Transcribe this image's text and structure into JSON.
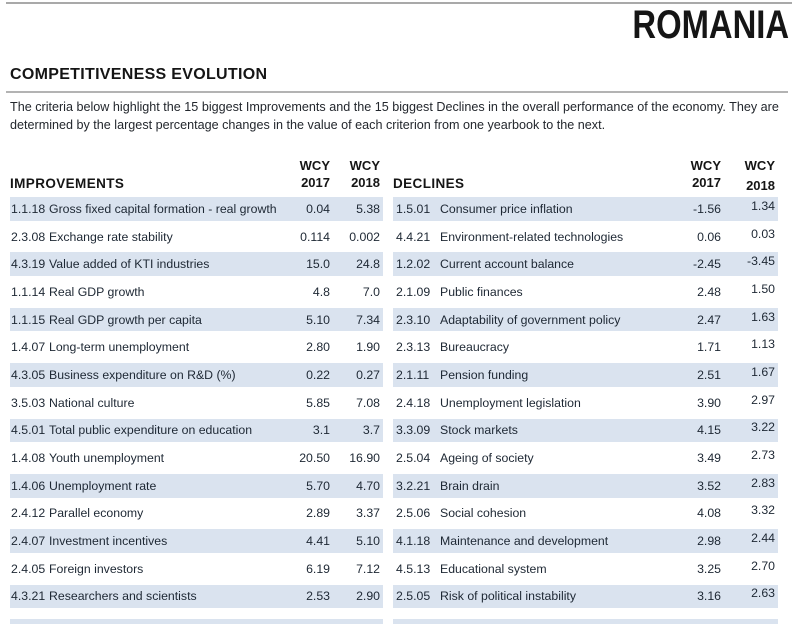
{
  "page": {
    "country": "ROMANIA",
    "section_title": "COMPETITIVENESS EVOLUTION",
    "description": "The criteria below highlight the 15 biggest Improvements and the 15 biggest Declines in the overall performance of the economy. They are determined by the largest percentage changes in the value of each criterion from one yearbook to the next."
  },
  "columns": {
    "wcy": "WCY",
    "year_2017": "2017",
    "year_2018": "2018"
  },
  "colors": {
    "row_shade": "#dae3ef",
    "rule_gray": "#a9a9a9",
    "text_dark": "#1d2733",
    "heading_black": "#151515"
  },
  "improvements": {
    "title": "IMPROVEMENTS",
    "rows": [
      {
        "id": "1.1.18",
        "label": "Gross fixed capital formation - real growth",
        "wcy2017": "0.04",
        "wcy2018": "5.38"
      },
      {
        "id": "2.3.08",
        "label": "Exchange rate stability",
        "wcy2017": "0.114",
        "wcy2018": "0.002"
      },
      {
        "id": "4.3.19",
        "label": "Value added of KTI industries",
        "wcy2017": "15.0",
        "wcy2018": "24.8"
      },
      {
        "id": "1.1.14",
        "label": "Real GDP growth",
        "wcy2017": "4.8",
        "wcy2018": "7.0"
      },
      {
        "id": "1.1.15",
        "label": "Real GDP growth per capita",
        "wcy2017": "5.10",
        "wcy2018": "7.34"
      },
      {
        "id": "1.4.07",
        "label": "Long-term unemployment",
        "wcy2017": "2.80",
        "wcy2018": "1.90"
      },
      {
        "id": "4.3.05",
        "label": "Business expenditure on R&D (%)",
        "wcy2017": "0.22",
        "wcy2018": "0.27"
      },
      {
        "id": "3.5.03",
        "label": "National culture",
        "wcy2017": "5.85",
        "wcy2018": "7.08"
      },
      {
        "id": "4.5.01",
        "label": "Total public expenditure on education",
        "wcy2017": "3.1",
        "wcy2018": "3.7"
      },
      {
        "id": "1.4.08",
        "label": "Youth unemployment",
        "wcy2017": "20.50",
        "wcy2018": "16.90"
      },
      {
        "id": "1.4.06",
        "label": "Unemployment rate",
        "wcy2017": "5.70",
        "wcy2018": "4.70"
      },
      {
        "id": "2.4.12",
        "label": "Parallel economy",
        "wcy2017": "2.89",
        "wcy2018": "3.37"
      },
      {
        "id": "2.4.07",
        "label": "Investment incentives",
        "wcy2017": "4.41",
        "wcy2018": "5.10"
      },
      {
        "id": "2.4.05",
        "label": "Foreign investors",
        "wcy2017": "6.19",
        "wcy2018": "7.12"
      },
      {
        "id": "4.3.21",
        "label": "Researchers and scientists",
        "wcy2017": "2.53",
        "wcy2018": "2.90"
      }
    ]
  },
  "declines": {
    "title": "DECLINES",
    "rows": [
      {
        "id": "1.5.01",
        "label": "Consumer price inflation",
        "wcy2017": "-1.56",
        "wcy2018": "1.34"
      },
      {
        "id": "4.4.21",
        "label": "Environment-related technologies",
        "wcy2017": "0.06",
        "wcy2018": "0.03"
      },
      {
        "id": "1.2.02",
        "label": "Current account balance",
        "wcy2017": "-2.45",
        "wcy2018": "-3.45"
      },
      {
        "id": "2.1.09",
        "label": "Public finances",
        "wcy2017": "2.48",
        "wcy2018": "1.50"
      },
      {
        "id": "2.3.10",
        "label": "Adaptability of government policy",
        "wcy2017": "2.47",
        "wcy2018": "1.63"
      },
      {
        "id": "2.3.13",
        "label": "Bureaucracy",
        "wcy2017": "1.71",
        "wcy2018": "1.13"
      },
      {
        "id": "2.1.11",
        "label": "Pension funding",
        "wcy2017": "2.51",
        "wcy2018": "1.67"
      },
      {
        "id": "2.4.18",
        "label": "Unemployment legislation",
        "wcy2017": "3.90",
        "wcy2018": "2.97"
      },
      {
        "id": "3.3.09",
        "label": "Stock markets",
        "wcy2017": "4.15",
        "wcy2018": "3.22"
      },
      {
        "id": "2.5.04",
        "label": "Ageing of society",
        "wcy2017": "3.49",
        "wcy2018": "2.73"
      },
      {
        "id": "3.2.21",
        "label": "Brain drain",
        "wcy2017": "3.52",
        "wcy2018": "2.83"
      },
      {
        "id": "2.5.06",
        "label": "Social cohesion",
        "wcy2017": "4.08",
        "wcy2018": "3.32"
      },
      {
        "id": "4.1.18",
        "label": "Maintenance and development",
        "wcy2017": "2.98",
        "wcy2018": "2.44"
      },
      {
        "id": "4.5.13",
        "label": "Educational system",
        "wcy2017": "3.25",
        "wcy2018": "2.70"
      },
      {
        "id": "2.5.05",
        "label": "Risk of political instability",
        "wcy2017": "3.16",
        "wcy2018": "2.63"
      }
    ]
  }
}
